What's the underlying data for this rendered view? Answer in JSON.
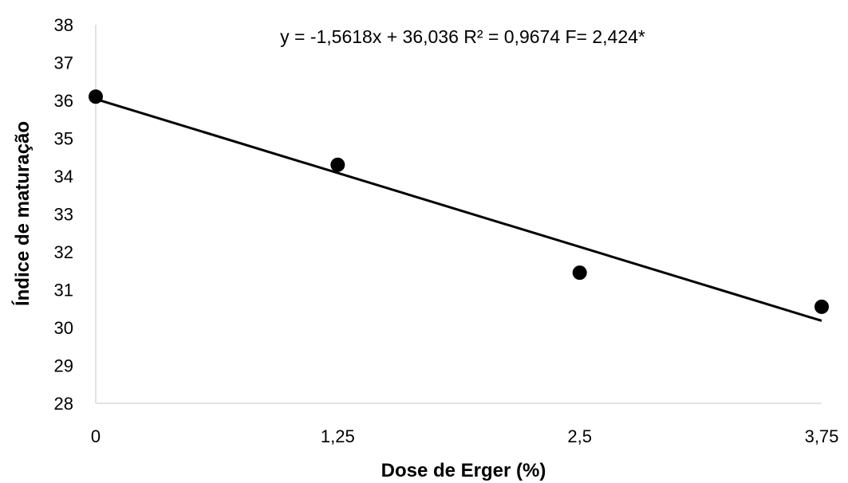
{
  "chart_data": {
    "type": "scatter",
    "title": "",
    "xlabel": "Dose de Erger (%)",
    "ylabel": "Índice de maturação",
    "x_ticks": [
      "0",
      "1,25",
      "2,5",
      "3,75"
    ],
    "y_ticks": [
      "28",
      "29",
      "30",
      "31",
      "32",
      "33",
      "34",
      "35",
      "36",
      "37",
      "38"
    ],
    "xlim": [
      0,
      3.75
    ],
    "ylim": [
      28,
      38
    ],
    "grid": false,
    "legend": "none",
    "series": [
      {
        "x": [
          0,
          1.25,
          2.5,
          3.75
        ],
        "y": [
          36.1,
          34.3,
          31.45,
          30.55
        ]
      }
    ],
    "trendline": {
      "slope": -1.5618,
      "intercept": 36.036,
      "x_range": [
        0,
        3.75
      ]
    },
    "annotation": "y = -1,5618x + 36,036 R² = 0,9674 F= 2,424*",
    "colors": {
      "points": "#000000",
      "line": "#000000",
      "axis": "#d9d9d9"
    }
  }
}
